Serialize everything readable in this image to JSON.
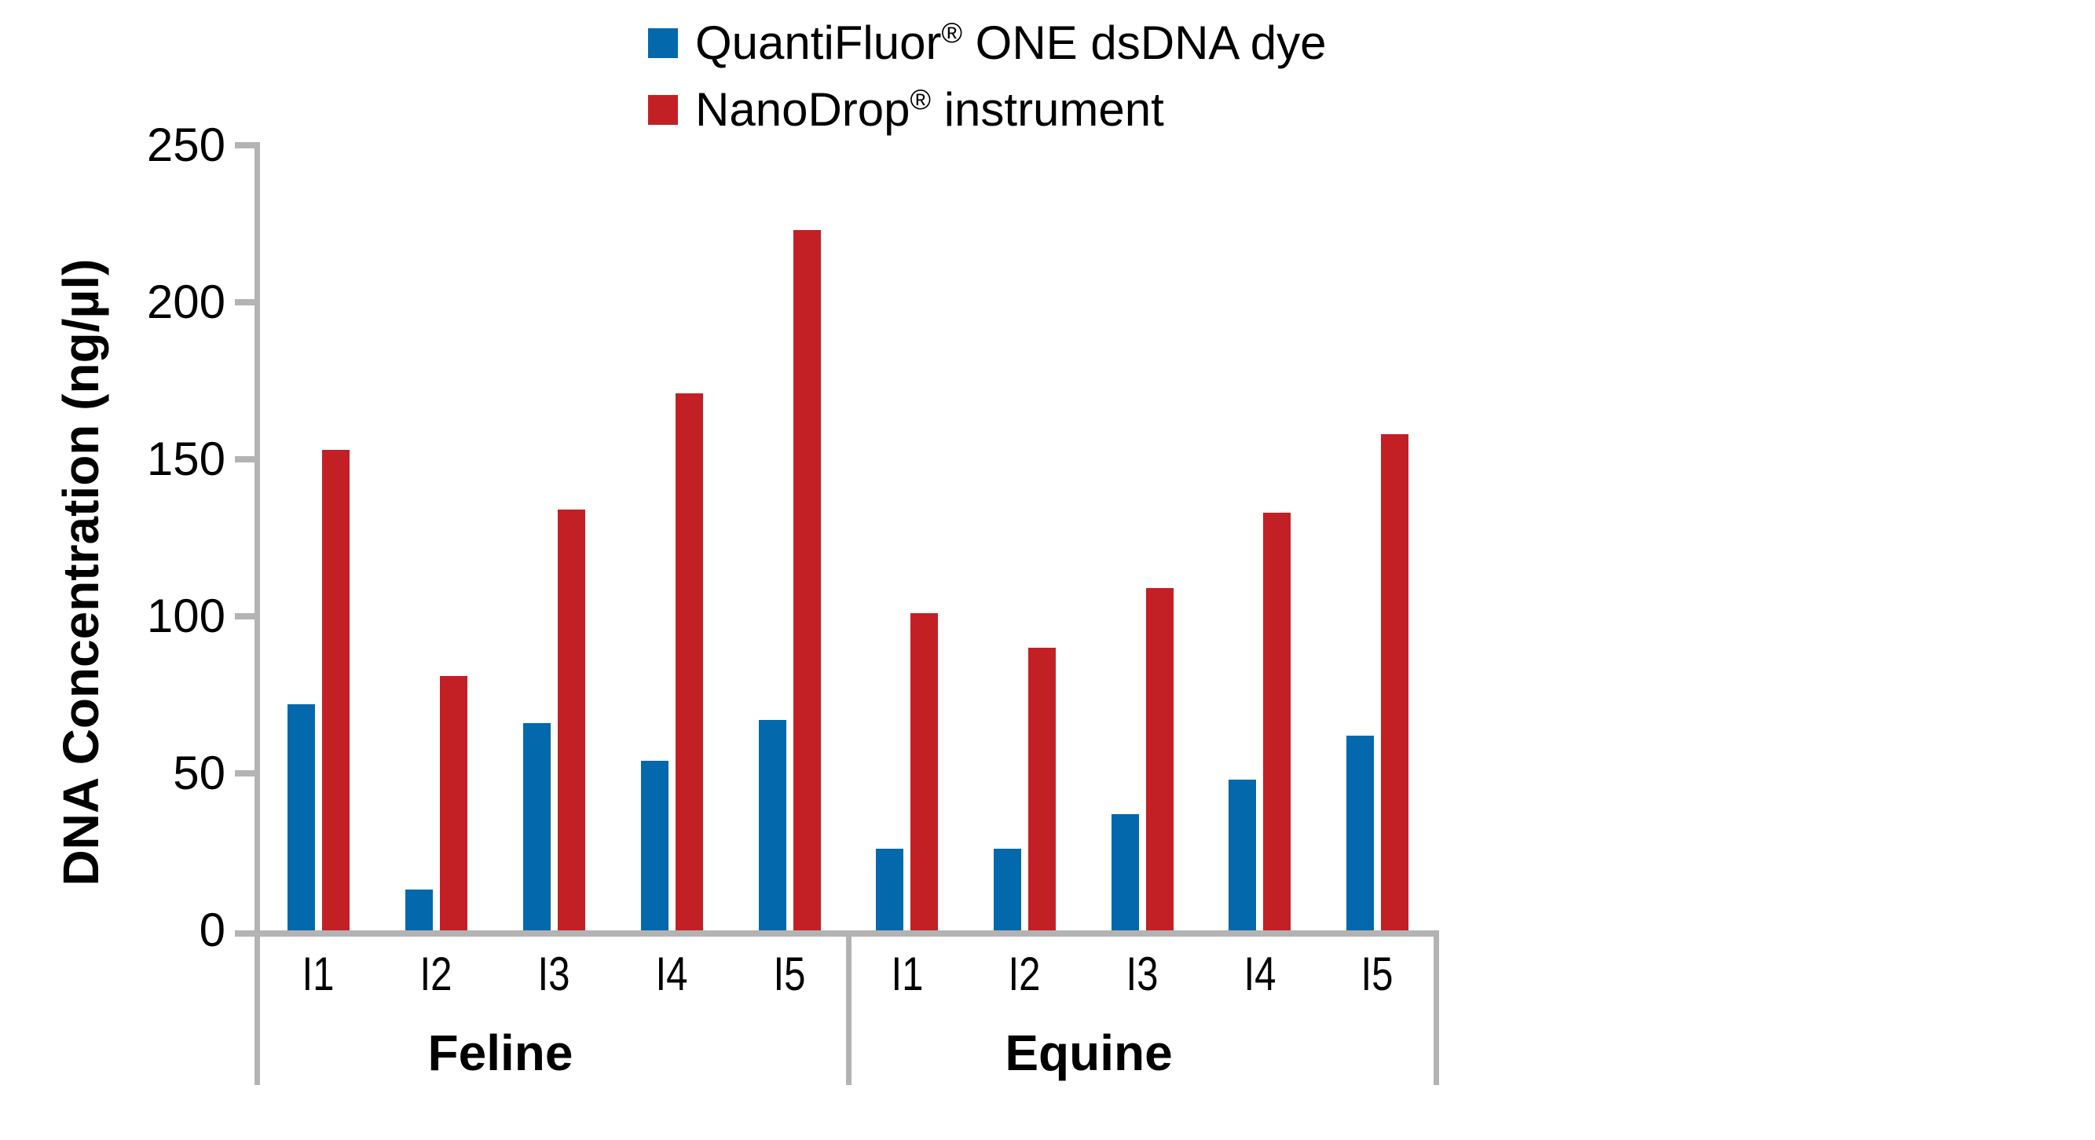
{
  "chart_data": {
    "type": "bar",
    "title": "",
    "ylabel": "DNA Concentration (ng/µl)",
    "xlabel": "",
    "ylim": [
      0,
      250
    ],
    "ytick_interval": 50,
    "yticks": [
      "0",
      "50",
      "100",
      "150",
      "200",
      "250"
    ],
    "grid": false,
    "legend_position": "top-center",
    "axis_color": "#B3B3B3",
    "text_color": "#000000",
    "groups": [
      {
        "label": "Feline",
        "categories": [
          "I1",
          "I2",
          "I3",
          "I4",
          "I5"
        ]
      },
      {
        "label": "Equine",
        "categories": [
          "I1",
          "I2",
          "I3",
          "I4",
          "I5"
        ]
      }
    ],
    "series": [
      {
        "name": "QuantiFluor® ONE dsDNA dye",
        "color": "#0468AC",
        "values_by_group": [
          [
            72,
            13,
            66,
            54,
            67
          ],
          [
            26,
            26,
            37,
            48,
            62
          ]
        ]
      },
      {
        "name": "NanoDrop® instrument",
        "color": "#C32026",
        "values_by_group": [
          [
            153,
            81,
            134,
            171,
            223
          ],
          [
            101,
            90,
            109,
            133,
            158
          ]
        ]
      }
    ]
  },
  "legend": {
    "items": [
      {
        "pre": "QuantiFluor",
        "sup": "®",
        "post": " ONE dsDNA dye",
        "color": "#0468AC"
      },
      {
        "pre": "NanoDrop",
        "sup": "®",
        "post": " instrument",
        "color": "#C32026"
      }
    ]
  },
  "y_axis": {
    "title": "DNA Concentration (ng/µl)"
  }
}
